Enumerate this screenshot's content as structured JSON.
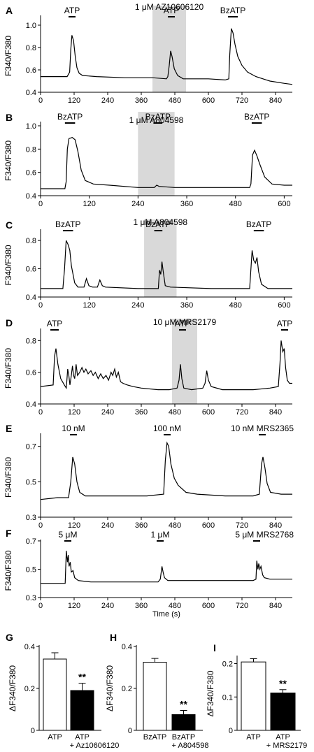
{
  "xaxis_title": "Time (s)",
  "chart_data": [
    {
      "panel": "A",
      "type": "line",
      "ylabel": "F340/F380",
      "xlim": [
        0,
        900
      ],
      "ylim": [
        0.4,
        1.05
      ],
      "xticks": [
        "0",
        "120",
        "240",
        "360",
        "480",
        "600",
        "720",
        "840"
      ],
      "yticks": [
        "0.4",
        "0.6",
        "0.8",
        "1.0"
      ],
      "shade": [
        400,
        520
      ],
      "shade_label": "1 μM AZ10606120",
      "stimuli": [
        {
          "label": "ATP",
          "start": 100,
          "end": 125
        },
        {
          "label": "ATP",
          "start": 455,
          "end": 480
        },
        {
          "label": "BzATP",
          "start": 670,
          "end": 705
        }
      ],
      "trace": [
        [
          0,
          0.54
        ],
        [
          95,
          0.54
        ],
        [
          104,
          0.58
        ],
        [
          108,
          0.78
        ],
        [
          112,
          0.91
        ],
        [
          118,
          0.86
        ],
        [
          124,
          0.72
        ],
        [
          130,
          0.62
        ],
        [
          138,
          0.57
        ],
        [
          150,
          0.55
        ],
        [
          200,
          0.54
        ],
        [
          300,
          0.53
        ],
        [
          400,
          0.53
        ],
        [
          450,
          0.52
        ],
        [
          455,
          0.54
        ],
        [
          460,
          0.64
        ],
        [
          465,
          0.77
        ],
        [
          470,
          0.72
        ],
        [
          478,
          0.61
        ],
        [
          490,
          0.55
        ],
        [
          510,
          0.52
        ],
        [
          600,
          0.52
        ],
        [
          660,
          0.51
        ],
        [
          673,
          0.52
        ],
        [
          676,
          0.72
        ],
        [
          682,
          0.97
        ],
        [
          688,
          0.93
        ],
        [
          695,
          0.83
        ],
        [
          705,
          0.72
        ],
        [
          720,
          0.64
        ],
        [
          740,
          0.58
        ],
        [
          770,
          0.54
        ],
        [
          820,
          0.5
        ],
        [
          870,
          0.48
        ],
        [
          900,
          0.47
        ]
      ]
    },
    {
      "panel": "B",
      "type": "line",
      "ylabel": "F340/F380",
      "xlim": [
        0,
        620
      ],
      "ylim": [
        0.4,
        1.0
      ],
      "xticks": [
        "0",
        "120",
        "240",
        "360",
        "480",
        "600"
      ],
      "yticks": [
        "0.4",
        "0.6",
        "0.8",
        "1.0"
      ],
      "shade": [
        240,
        330
      ],
      "shade_label": "1 μM A804598",
      "stimuli": [
        {
          "label": "BzATP",
          "start": 60,
          "end": 85
        },
        {
          "label": "BzATP",
          "start": 278,
          "end": 300
        },
        {
          "label": "BzATP",
          "start": 520,
          "end": 545
        }
      ],
      "trace": [
        [
          0,
          0.46
        ],
        [
          60,
          0.46
        ],
        [
          63,
          0.52
        ],
        [
          66,
          0.8
        ],
        [
          70,
          0.89
        ],
        [
          78,
          0.9
        ],
        [
          85,
          0.88
        ],
        [
          92,
          0.78
        ],
        [
          100,
          0.62
        ],
        [
          110,
          0.53
        ],
        [
          130,
          0.5
        ],
        [
          170,
          0.49
        ],
        [
          240,
          0.47
        ],
        [
          280,
          0.47
        ],
        [
          286,
          0.49
        ],
        [
          292,
          0.48
        ],
        [
          330,
          0.47
        ],
        [
          440,
          0.47
        ],
        [
          515,
          0.47
        ],
        [
          518,
          0.5
        ],
        [
          522,
          0.75
        ],
        [
          527,
          0.79
        ],
        [
          533,
          0.74
        ],
        [
          540,
          0.67
        ],
        [
          552,
          0.56
        ],
        [
          570,
          0.5
        ],
        [
          600,
          0.49
        ],
        [
          620,
          0.49
        ]
      ]
    },
    {
      "panel": "C",
      "type": "line",
      "ylabel": "F340/F380",
      "xlim": [
        0,
        620
      ],
      "ylim": [
        0.4,
        0.85
      ],
      "xticks": [
        "0",
        "120",
        "240",
        "360",
        "480",
        "600"
      ],
      "yticks": [
        "0.4",
        "0.6",
        "0.8"
      ],
      "shade": [
        255,
        335
      ],
      "shade_label": "1 μM A804598",
      "stimuli": [
        {
          "label": "BzATP",
          "start": 55,
          "end": 80
        },
        {
          "label": "BzATP",
          "start": 280,
          "end": 300
        },
        {
          "label": "BzATP",
          "start": 525,
          "end": 550
        }
      ],
      "trace": [
        [
          0,
          0.46
        ],
        [
          55,
          0.46
        ],
        [
          59,
          0.6
        ],
        [
          63,
          0.8
        ],
        [
          68,
          0.77
        ],
        [
          72,
          0.73
        ],
        [
          76,
          0.62
        ],
        [
          84,
          0.5
        ],
        [
          92,
          0.47
        ],
        [
          107,
          0.47
        ],
        [
          113,
          0.53
        ],
        [
          119,
          0.48
        ],
        [
          128,
          0.47
        ],
        [
          140,
          0.47
        ],
        [
          146,
          0.52
        ],
        [
          152,
          0.48
        ],
        [
          160,
          0.47
        ],
        [
          240,
          0.46
        ],
        [
          290,
          0.46
        ],
        [
          293,
          0.59
        ],
        [
          296,
          0.56
        ],
        [
          299,
          0.65
        ],
        [
          302,
          0.58
        ],
        [
          307,
          0.48
        ],
        [
          320,
          0.47
        ],
        [
          420,
          0.46
        ],
        [
          515,
          0.46
        ],
        [
          521,
          0.73
        ],
        [
          525,
          0.66
        ],
        [
          529,
          0.64
        ],
        [
          533,
          0.68
        ],
        [
          537,
          0.58
        ],
        [
          544,
          0.49
        ],
        [
          560,
          0.46
        ],
        [
          620,
          0.46
        ]
      ]
    },
    {
      "panel": "D",
      "type": "line",
      "ylabel": "F340/F380",
      "xlim": [
        0,
        900
      ],
      "ylim": [
        0.4,
        0.85
      ],
      "xticks": [
        "0",
        "120",
        "240",
        "360",
        "480",
        "600",
        "720",
        "840"
      ],
      "yticks": [
        "0.4",
        "0.6",
        "0.8"
      ],
      "shade": [
        470,
        560
      ],
      "shade_label": "10 μM MRS2179",
      "stimuli": [
        {
          "label": "ATP",
          "start": 35,
          "end": 65
        },
        {
          "label": "ATP",
          "start": 495,
          "end": 520
        },
        {
          "label": "ATP",
          "start": 860,
          "end": 885
        }
      ],
      "trace": [
        [
          0,
          0.51
        ],
        [
          45,
          0.52
        ],
        [
          50,
          0.7
        ],
        [
          55,
          0.75
        ],
        [
          62,
          0.65
        ],
        [
          72,
          0.56
        ],
        [
          85,
          0.52
        ],
        [
          92,
          0.5
        ],
        [
          97,
          0.62
        ],
        [
          101,
          0.58
        ],
        [
          105,
          0.52
        ],
        [
          110,
          0.58
        ],
        [
          114,
          0.64
        ],
        [
          118,
          0.58
        ],
        [
          122,
          0.56
        ],
        [
          127,
          0.65
        ],
        [
          132,
          0.58
        ],
        [
          140,
          0.6
        ],
        [
          148,
          0.63
        ],
        [
          155,
          0.6
        ],
        [
          162,
          0.62
        ],
        [
          170,
          0.59
        ],
        [
          180,
          0.61
        ],
        [
          188,
          0.58
        ],
        [
          196,
          0.6
        ],
        [
          206,
          0.56
        ],
        [
          215,
          0.59
        ],
        [
          224,
          0.56
        ],
        [
          234,
          0.58
        ],
        [
          243,
          0.55
        ],
        [
          252,
          0.6
        ],
        [
          258,
          0.58
        ],
        [
          265,
          0.62
        ],
        [
          271,
          0.57
        ],
        [
          278,
          0.6
        ],
        [
          286,
          0.54
        ],
        [
          295,
          0.53
        ],
        [
          310,
          0.52
        ],
        [
          330,
          0.51
        ],
        [
          360,
          0.5
        ],
        [
          420,
          0.49
        ],
        [
          460,
          0.49
        ],
        [
          488,
          0.5
        ],
        [
          495,
          0.55
        ],
        [
          500,
          0.65
        ],
        [
          505,
          0.56
        ],
        [
          512,
          0.5
        ],
        [
          540,
          0.49
        ],
        [
          580,
          0.5
        ],
        [
          588,
          0.53
        ],
        [
          594,
          0.61
        ],
        [
          600,
          0.55
        ],
        [
          610,
          0.51
        ],
        [
          650,
          0.49
        ],
        [
          760,
          0.49
        ],
        [
          820,
          0.5
        ],
        [
          850,
          0.51
        ],
        [
          856,
          0.66
        ],
        [
          860,
          0.8
        ],
        [
          866,
          0.73
        ],
        [
          871,
          0.75
        ],
        [
          876,
          0.63
        ],
        [
          882,
          0.55
        ],
        [
          890,
          0.53
        ],
        [
          900,
          0.53
        ]
      ]
    },
    {
      "panel": "E",
      "type": "line",
      "ylabel": "F340/F380",
      "xlim": [
        0,
        900
      ],
      "ylim": [
        0.3,
        0.75
      ],
      "xticks": [
        "0",
        "120",
        "240",
        "360",
        "480",
        "600",
        "720",
        "840"
      ],
      "yticks": [
        "0.3",
        "0.5",
        "0.7"
      ],
      "stimuli": [
        {
          "label": "10 nM",
          "start": 105,
          "end": 130
        },
        {
          "label": "100 nM",
          "start": 440,
          "end": 465
        },
        {
          "label": "10 nM MRS2365",
          "start": 780,
          "end": 805
        }
      ],
      "trace": [
        [
          0,
          0.4
        ],
        [
          60,
          0.41
        ],
        [
          100,
          0.41
        ],
        [
          108,
          0.5
        ],
        [
          115,
          0.64
        ],
        [
          122,
          0.6
        ],
        [
          130,
          0.5
        ],
        [
          140,
          0.44
        ],
        [
          160,
          0.42
        ],
        [
          220,
          0.42
        ],
        [
          300,
          0.42
        ],
        [
          380,
          0.42
        ],
        [
          440,
          0.43
        ],
        [
          446,
          0.62
        ],
        [
          452,
          0.72
        ],
        [
          458,
          0.7
        ],
        [
          466,
          0.6
        ],
        [
          478,
          0.52
        ],
        [
          492,
          0.48
        ],
        [
          520,
          0.44
        ],
        [
          560,
          0.43
        ],
        [
          660,
          0.42
        ],
        [
          760,
          0.42
        ],
        [
          782,
          0.43
        ],
        [
          790,
          0.6
        ],
        [
          795,
          0.64
        ],
        [
          802,
          0.58
        ],
        [
          810,
          0.49
        ],
        [
          822,
          0.44
        ],
        [
          860,
          0.43
        ],
        [
          900,
          0.43
        ]
      ]
    },
    {
      "panel": "F",
      "type": "line",
      "ylabel": "F340/F380",
      "xlim": [
        0,
        900
      ],
      "ylim": [
        0.3,
        0.68
      ],
      "xticks": [
        "0",
        "120",
        "240",
        "360",
        "480",
        "600",
        "720",
        "840"
      ],
      "yticks": [
        "0.3",
        "0.5",
        "0.7"
      ],
      "xlabel": "Time (s)",
      "stimuli": [
        {
          "label": "5 μM",
          "start": 85,
          "end": 110
        },
        {
          "label": "1 μM",
          "start": 415,
          "end": 440
        },
        {
          "label": "5 μM MRS2768",
          "start": 760,
          "end": 785
        }
      ],
      "trace": [
        [
          0,
          0.4
        ],
        [
          60,
          0.4
        ],
        [
          88,
          0.4
        ],
        [
          92,
          0.63
        ],
        [
          96,
          0.55
        ],
        [
          99,
          0.6
        ],
        [
          102,
          0.52
        ],
        [
          106,
          0.55
        ],
        [
          110,
          0.48
        ],
        [
          116,
          0.49
        ],
        [
          122,
          0.44
        ],
        [
          135,
          0.42
        ],
        [
          180,
          0.41
        ],
        [
          260,
          0.41
        ],
        [
          340,
          0.41
        ],
        [
          420,
          0.41
        ],
        [
          428,
          0.43
        ],
        [
          434,
          0.52
        ],
        [
          438,
          0.48
        ],
        [
          443,
          0.44
        ],
        [
          455,
          0.42
        ],
        [
          520,
          0.42
        ],
        [
          640,
          0.42
        ],
        [
          760,
          0.42
        ],
        [
          770,
          0.43
        ],
        [
          773,
          0.56
        ],
        [
          777,
          0.5
        ],
        [
          780,
          0.54
        ],
        [
          784,
          0.5
        ],
        [
          788,
          0.52
        ],
        [
          794,
          0.46
        ],
        [
          800,
          0.44
        ],
        [
          820,
          0.43
        ],
        [
          900,
          0.43
        ]
      ]
    },
    {
      "panel": "G",
      "type": "bar",
      "ylabel": "ΔF340/F380",
      "ylim": [
        0,
        0.4
      ],
      "yticks": [
        "0",
        "0.2",
        "0.4"
      ],
      "categories": [
        "ATP",
        "ATP"
      ],
      "treatment_label": "+ Az10606120",
      "values": [
        0.34,
        0.19
      ],
      "errors": [
        0.03,
        0.035
      ],
      "fills": [
        "#ffffff",
        "#000000"
      ],
      "significance": "**"
    },
    {
      "panel": "H",
      "type": "bar",
      "ylabel": "ΔF340/F380",
      "ylim": [
        0,
        0.4
      ],
      "yticks": [
        "0",
        "0.2",
        "0.4"
      ],
      "categories": [
        "BzATP",
        "BzATP"
      ],
      "treatment_label": "+ A804598",
      "values": [
        0.325,
        0.075
      ],
      "errors": [
        0.018,
        0.02
      ],
      "fills": [
        "#ffffff",
        "#000000"
      ],
      "significance": "**"
    },
    {
      "panel": "I",
      "type": "bar",
      "ylabel": "ΔF340/F380",
      "ylim": [
        0,
        0.22
      ],
      "yticks": [
        "0",
        "0.1",
        "0.2"
      ],
      "categories": [
        "ATP",
        "ATP"
      ],
      "treatment_label": "+ MRS2179",
      "values": [
        0.205,
        0.112
      ],
      "errors": [
        0.01,
        0.01
      ],
      "fills": [
        "#ffffff",
        "#000000"
      ],
      "significance": "**"
    }
  ]
}
